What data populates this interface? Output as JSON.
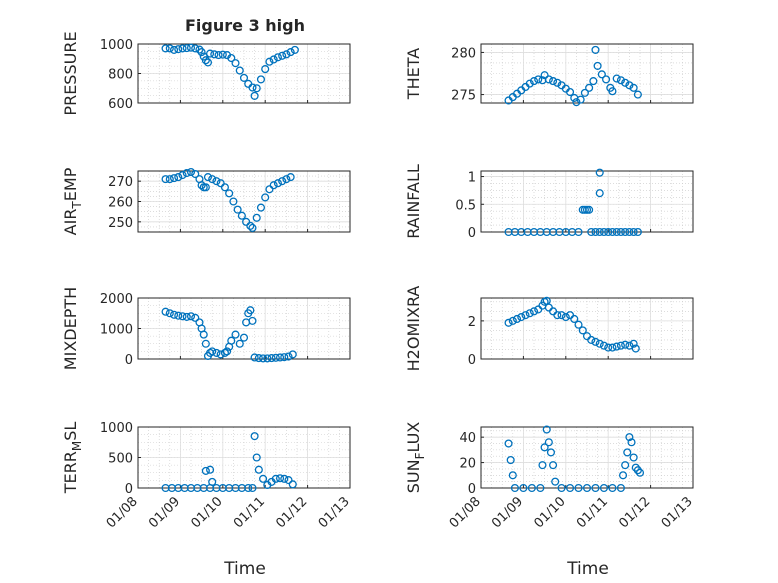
{
  "figure_title": "Figure 3 high",
  "x_axis": {
    "label": "Time",
    "tick_labels": [
      "01/08",
      "01/09",
      "01/10",
      "01/11",
      "01/12",
      "01/13"
    ]
  },
  "marker_color": "#0072BD",
  "chart_data": [
    {
      "type": "scatter",
      "title": "Figure 3 high",
      "ylabel": "PRESSURE",
      "ylim": [
        600,
        1000
      ],
      "yticks": [
        600,
        800,
        1000
      ],
      "xlabel": "",
      "xlim": [
        0,
        5
      ],
      "grid": true,
      "points": [
        [
          0.65,
          970
        ],
        [
          0.75,
          970
        ],
        [
          0.85,
          960
        ],
        [
          0.95,
          965
        ],
        [
          1.05,
          970
        ],
        [
          1.15,
          972
        ],
        [
          1.25,
          975
        ],
        [
          1.35,
          970
        ],
        [
          1.45,
          962
        ],
        [
          1.5,
          945
        ],
        [
          1.55,
          915
        ],
        [
          1.6,
          890
        ],
        [
          1.65,
          875
        ],
        [
          1.7,
          935
        ],
        [
          1.8,
          930
        ],
        [
          1.9,
          925
        ],
        [
          2.0,
          928
        ],
        [
          2.1,
          925
        ],
        [
          2.2,
          905
        ],
        [
          2.3,
          870
        ],
        [
          2.4,
          820
        ],
        [
          2.5,
          770
        ],
        [
          2.6,
          730
        ],
        [
          2.7,
          705
        ],
        [
          2.75,
          648
        ],
        [
          2.8,
          700
        ],
        [
          2.9,
          760
        ],
        [
          3.0,
          830
        ],
        [
          3.1,
          880
        ],
        [
          3.2,
          895
        ],
        [
          3.3,
          910
        ],
        [
          3.4,
          920
        ],
        [
          3.5,
          930
        ],
        [
          3.6,
          945
        ],
        [
          3.7,
          960
        ]
      ]
    },
    {
      "type": "scatter",
      "title": "",
      "ylabel": "THETA",
      "ylim": [
        274,
        281
      ],
      "yticks": [
        275,
        280
      ],
      "xlabel": "",
      "xlim": [
        0,
        5
      ],
      "grid": true,
      "points": [
        [
          0.65,
          274.3
        ],
        [
          0.75,
          274.7
        ],
        [
          0.85,
          275.1
        ],
        [
          0.95,
          275.5
        ],
        [
          1.05,
          275.9
        ],
        [
          1.15,
          276.3
        ],
        [
          1.25,
          276.6
        ],
        [
          1.35,
          276.8
        ],
        [
          1.45,
          276.7
        ],
        [
          1.5,
          277.3
        ],
        [
          1.6,
          276.8
        ],
        [
          1.7,
          276.6
        ],
        [
          1.8,
          276.4
        ],
        [
          1.9,
          276.1
        ],
        [
          2.0,
          275.7
        ],
        [
          2.1,
          275.3
        ],
        [
          2.2,
          274.6
        ],
        [
          2.25,
          274.1
        ],
        [
          2.35,
          274.4
        ],
        [
          2.45,
          275.2
        ],
        [
          2.55,
          275.8
        ],
        [
          2.65,
          276.6
        ],
        [
          2.7,
          280.3
        ],
        [
          2.75,
          278.4
        ],
        [
          2.85,
          277.4
        ],
        [
          2.95,
          276.8
        ],
        [
          3.05,
          275.8
        ],
        [
          3.1,
          275.4
        ],
        [
          3.2,
          276.9
        ],
        [
          3.3,
          276.7
        ],
        [
          3.4,
          276.4
        ],
        [
          3.5,
          276.1
        ],
        [
          3.6,
          275.8
        ],
        [
          3.7,
          275.0
        ]
      ]
    },
    {
      "type": "scatter",
      "title": "",
      "ylabel": "AIR_TEMP",
      "ylim": [
        245,
        275
      ],
      "yticks": [
        250,
        260,
        270
      ],
      "xlabel": "",
      "xlim": [
        0,
        5
      ],
      "grid": true,
      "points": [
        [
          0.65,
          271
        ],
        [
          0.75,
          271
        ],
        [
          0.85,
          271.5
        ],
        [
          0.95,
          272
        ],
        [
          1.05,
          273
        ],
        [
          1.15,
          274
        ],
        [
          1.25,
          274.5
        ],
        [
          1.35,
          273.5
        ],
        [
          1.45,
          271
        ],
        [
          1.5,
          268
        ],
        [
          1.55,
          267
        ],
        [
          1.6,
          267
        ],
        [
          1.65,
          272
        ],
        [
          1.75,
          271
        ],
        [
          1.85,
          270
        ],
        [
          1.95,
          269
        ],
        [
          2.05,
          267
        ],
        [
          2.15,
          264
        ],
        [
          2.25,
          260
        ],
        [
          2.35,
          256
        ],
        [
          2.45,
          253
        ],
        [
          2.55,
          250
        ],
        [
          2.65,
          248
        ],
        [
          2.7,
          247
        ],
        [
          2.8,
          252
        ],
        [
          2.9,
          257
        ],
        [
          3.0,
          262
        ],
        [
          3.1,
          266
        ],
        [
          3.2,
          268
        ],
        [
          3.3,
          269
        ],
        [
          3.4,
          270
        ],
        [
          3.5,
          271
        ],
        [
          3.6,
          272
        ]
      ]
    },
    {
      "type": "scatter",
      "title": "",
      "ylabel": "RAINFALL",
      "ylim": [
        0,
        1.1
      ],
      "yticks": [
        0,
        0.5,
        1
      ],
      "xlabel": "",
      "xlim": [
        0,
        5
      ],
      "grid": true,
      "points": [
        [
          0.65,
          0
        ],
        [
          0.8,
          0
        ],
        [
          0.95,
          0
        ],
        [
          1.1,
          0
        ],
        [
          1.25,
          0
        ],
        [
          1.4,
          0
        ],
        [
          1.55,
          0
        ],
        [
          1.7,
          0
        ],
        [
          1.85,
          0
        ],
        [
          2.0,
          0
        ],
        [
          2.15,
          0
        ],
        [
          2.3,
          0
        ],
        [
          2.4,
          0.4
        ],
        [
          2.45,
          0.4
        ],
        [
          2.5,
          0.4
        ],
        [
          2.55,
          0.4
        ],
        [
          2.6,
          0
        ],
        [
          2.7,
          0
        ],
        [
          2.8,
          0
        ],
        [
          2.9,
          0
        ],
        [
          3.0,
          0
        ],
        [
          3.1,
          0
        ],
        [
          3.2,
          0
        ],
        [
          3.3,
          0
        ],
        [
          3.4,
          0
        ],
        [
          3.5,
          0
        ],
        [
          3.6,
          0
        ],
        [
          3.7,
          0
        ],
        [
          2.8,
          1.07
        ],
        [
          2.8,
          0.7
        ]
      ]
    },
    {
      "type": "scatter",
      "title": "",
      "ylabel": "MIXDEPTH",
      "ylim": [
        0,
        2000
      ],
      "yticks": [
        0,
        1000,
        2000
      ],
      "xlabel": "",
      "xlim": [
        0,
        5
      ],
      "grid": true,
      "points": [
        [
          0.65,
          1550
        ],
        [
          0.75,
          1500
        ],
        [
          0.85,
          1450
        ],
        [
          0.95,
          1420
        ],
        [
          1.05,
          1400
        ],
        [
          1.15,
          1380
        ],
        [
          1.25,
          1400
        ],
        [
          1.35,
          1350
        ],
        [
          1.45,
          1200
        ],
        [
          1.5,
          1000
        ],
        [
          1.55,
          800
        ],
        [
          1.6,
          500
        ],
        [
          1.65,
          100
        ],
        [
          1.7,
          200
        ],
        [
          1.75,
          250
        ],
        [
          1.85,
          200
        ],
        [
          1.95,
          150
        ],
        [
          2.05,
          200
        ],
        [
          2.1,
          250
        ],
        [
          2.15,
          400
        ],
        [
          2.2,
          600
        ],
        [
          2.3,
          800
        ],
        [
          2.4,
          500
        ],
        [
          2.5,
          700
        ],
        [
          2.55,
          1200
        ],
        [
          2.6,
          1500
        ],
        [
          2.65,
          1600
        ],
        [
          2.7,
          1250
        ],
        [
          2.75,
          50
        ],
        [
          2.85,
          30
        ],
        [
          2.95,
          20
        ],
        [
          3.05,
          20
        ],
        [
          3.15,
          30
        ],
        [
          3.25,
          40
        ],
        [
          3.35,
          50
        ],
        [
          3.45,
          60
        ],
        [
          3.55,
          80
        ],
        [
          3.65,
          150
        ]
      ]
    },
    {
      "type": "scatter",
      "title": "",
      "ylabel": "H2OMIXRA",
      "ylim": [
        0,
        3.2
      ],
      "yticks": [
        0,
        2
      ],
      "xlabel": "",
      "xlim": [
        0,
        5
      ],
      "grid": true,
      "points": [
        [
          0.65,
          1.9
        ],
        [
          0.75,
          2.0
        ],
        [
          0.85,
          2.1
        ],
        [
          0.95,
          2.2
        ],
        [
          1.05,
          2.3
        ],
        [
          1.15,
          2.4
        ],
        [
          1.25,
          2.5
        ],
        [
          1.35,
          2.6
        ],
        [
          1.45,
          2.8
        ],
        [
          1.5,
          3.0
        ],
        [
          1.55,
          3.05
        ],
        [
          1.6,
          2.7
        ],
        [
          1.7,
          2.5
        ],
        [
          1.8,
          2.3
        ],
        [
          1.9,
          2.3
        ],
        [
          2.0,
          2.2
        ],
        [
          2.1,
          2.3
        ],
        [
          2.2,
          2.1
        ],
        [
          2.3,
          1.8
        ],
        [
          2.4,
          1.5
        ],
        [
          2.5,
          1.2
        ],
        [
          2.6,
          1.0
        ],
        [
          2.7,
          0.9
        ],
        [
          2.8,
          0.8
        ],
        [
          2.9,
          0.7
        ],
        [
          3.0,
          0.6
        ],
        [
          3.1,
          0.6
        ],
        [
          3.2,
          0.65
        ],
        [
          3.3,
          0.7
        ],
        [
          3.4,
          0.75
        ],
        [
          3.5,
          0.7
        ],
        [
          3.6,
          0.8
        ],
        [
          3.65,
          0.55
        ]
      ]
    },
    {
      "type": "scatter",
      "title": "",
      "ylabel": "TERR_MSL",
      "ylim": [
        0,
        1000
      ],
      "yticks": [
        0,
        500,
        1000
      ],
      "xlabel": "Time",
      "xlim": [
        0,
        5
      ],
      "grid": true,
      "points": [
        [
          0.65,
          0
        ],
        [
          0.8,
          0
        ],
        [
          0.95,
          0
        ],
        [
          1.1,
          0
        ],
        [
          1.25,
          0
        ],
        [
          1.4,
          0
        ],
        [
          1.55,
          0
        ],
        [
          1.7,
          0
        ],
        [
          1.6,
          280
        ],
        [
          1.7,
          300
        ],
        [
          1.75,
          100
        ],
        [
          1.85,
          0
        ],
        [
          2.0,
          0
        ],
        [
          2.15,
          0
        ],
        [
          2.3,
          0
        ],
        [
          2.45,
          0
        ],
        [
          2.6,
          0
        ],
        [
          2.7,
          0
        ],
        [
          2.75,
          850
        ],
        [
          2.8,
          500
        ],
        [
          2.85,
          300
        ],
        [
          2.95,
          150
        ],
        [
          3.05,
          50
        ],
        [
          3.15,
          100
        ],
        [
          3.25,
          150
        ],
        [
          3.35,
          160
        ],
        [
          3.45,
          150
        ],
        [
          3.55,
          130
        ],
        [
          3.65,
          60
        ]
      ]
    },
    {
      "type": "scatter",
      "title": "",
      "ylabel": "SUN_FLUX",
      "ylim": [
        0,
        48
      ],
      "yticks": [
        0,
        20,
        40
      ],
      "xlabel": "Time",
      "xlim": [
        0,
        5
      ],
      "grid": true,
      "points": [
        [
          0.65,
          35
        ],
        [
          0.7,
          22
        ],
        [
          0.75,
          10
        ],
        [
          0.8,
          0
        ],
        [
          1.0,
          0
        ],
        [
          1.2,
          0
        ],
        [
          1.4,
          0
        ],
        [
          1.5,
          32
        ],
        [
          1.55,
          46
        ],
        [
          1.6,
          36
        ],
        [
          1.65,
          28
        ],
        [
          1.7,
          18
        ],
        [
          1.75,
          5
        ],
        [
          1.45,
          18
        ],
        [
          1.9,
          0
        ],
        [
          2.1,
          0
        ],
        [
          2.3,
          0
        ],
        [
          2.5,
          0
        ],
        [
          2.7,
          0
        ],
        [
          2.9,
          0
        ],
        [
          3.1,
          0
        ],
        [
          3.3,
          0
        ],
        [
          3.35,
          10
        ],
        [
          3.4,
          18
        ],
        [
          3.45,
          28
        ],
        [
          3.5,
          40
        ],
        [
          3.55,
          36
        ],
        [
          3.6,
          24
        ],
        [
          3.65,
          16
        ],
        [
          3.7,
          14
        ],
        [
          3.75,
          12
        ]
      ]
    }
  ]
}
